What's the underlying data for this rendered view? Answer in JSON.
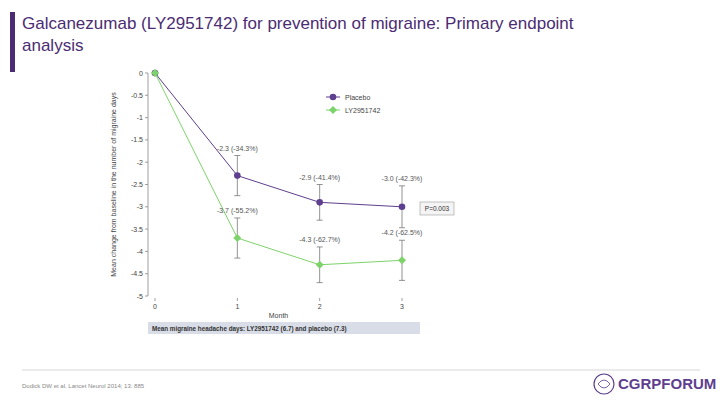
{
  "header": {
    "title": "Galcanezumab (LY2951742) for prevention of migraine: Primary endpoint analysis"
  },
  "chart_data": {
    "type": "line",
    "x_label": "Month",
    "y_label": "Mean change from baseline in the number of migraine days",
    "x": [
      0,
      1,
      2,
      3
    ],
    "xlim": [
      0,
      3
    ],
    "xticks": [
      0,
      1,
      2,
      3
    ],
    "ylim": [
      -5,
      0
    ],
    "yticks": [
      0,
      -0.5,
      -1,
      -1.5,
      -2,
      -2.5,
      -3,
      -3.5,
      -4,
      -4.5,
      -5
    ],
    "grid": false,
    "legend": "upper right",
    "data_labels": true,
    "series": [
      {
        "name": "Placebo",
        "color": "#5e3f8f",
        "marker": "circle",
        "values": [
          0,
          -2.3,
          -2.9,
          -3.0
        ],
        "value_labels": [
          null,
          "-2.3 (-34.3%)",
          "-2.9 (-41.4%)",
          "-3.0 (-42.3%)"
        ],
        "errors": [
          0,
          0.45,
          0.4,
          0.47
        ]
      },
      {
        "name": "LY2951742",
        "color": "#7dd36a",
        "marker": "diamond",
        "values": [
          0,
          -3.7,
          -4.3,
          -4.2
        ],
        "value_labels": [
          null,
          "-3.7 (-55.2%)",
          "-4.3 (-62.7%)",
          "-4.2 (-62.5%)"
        ],
        "errors": [
          0,
          0.45,
          0.4,
          0.45
        ]
      }
    ],
    "annotations": [
      "P=0.003",
      "Mean migraine headache days: LY2951742 (6.7) and placebo (7.3)"
    ]
  },
  "footer": {
    "citation": "Dodick DW et al. Lancet Neurol 2014; 13: 885",
    "logo": "CGRPFORUM"
  }
}
